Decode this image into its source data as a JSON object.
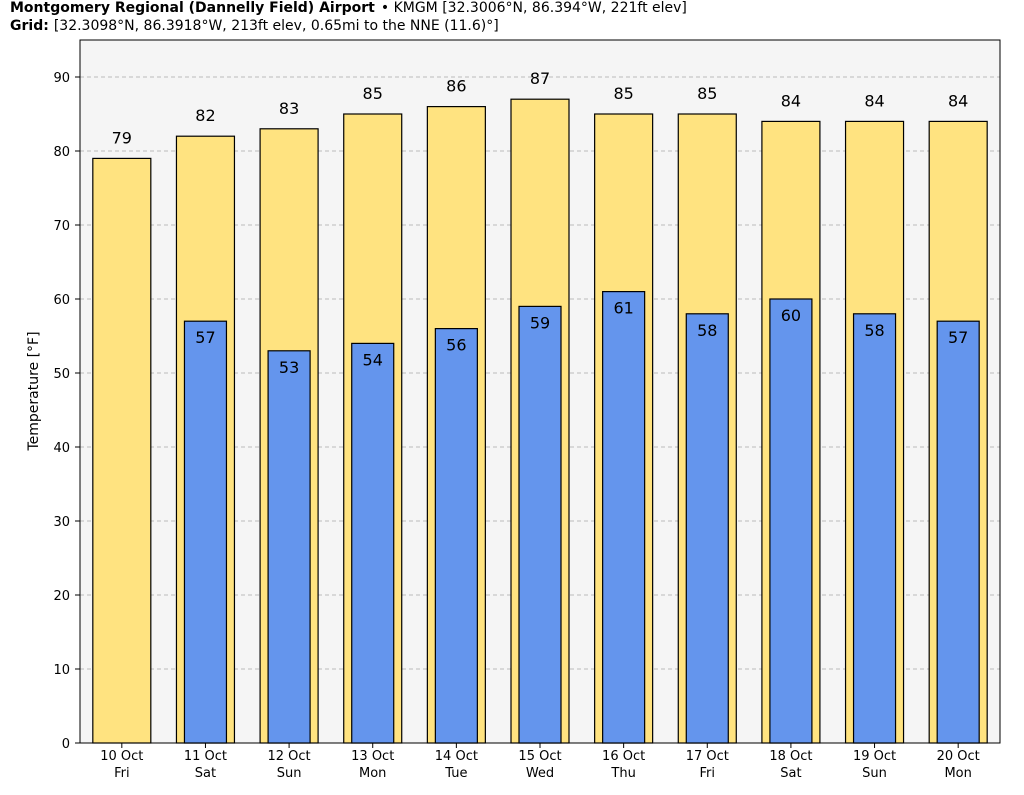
{
  "chart_data": {
    "type": "bar",
    "title": "Montgomery Regional (Dannelly Field) Airport",
    "station": "• KMGM [32.3006°N, 86.394°W, 221ft elev]",
    "grid_label": "Grid:",
    "grid_info": "[32.3098°N, 86.3918°W, 213ft elev, 0.65mi to the NNE (11.6)°]",
    "y_label": "Temperature [°F]",
    "categories": [
      [
        "10 Oct",
        "Fri"
      ],
      [
        "11 Oct",
        "Sat"
      ],
      [
        "12 Oct",
        "Sun"
      ],
      [
        "13 Oct",
        "Mon"
      ],
      [
        "14 Oct",
        "Tue"
      ],
      [
        "15 Oct",
        "Wed"
      ],
      [
        "16 Oct",
        "Thu"
      ],
      [
        "17 Oct",
        "Fri"
      ],
      [
        "18 Oct",
        "Sat"
      ],
      [
        "19 Oct",
        "Sun"
      ],
      [
        "20 Oct",
        "Mon"
      ]
    ],
    "series": [
      {
        "color": "#ffe380",
        "values": [
          79,
          82,
          83,
          85,
          86,
          87,
          85,
          85,
          84,
          84,
          84
        ]
      },
      {
        "color": "#6495ed",
        "values": [
          null,
          57,
          53,
          54,
          56,
          59,
          61,
          58,
          60,
          58,
          57
        ]
      }
    ],
    "ylim": [
      0,
      95
    ],
    "yticks": [
      0,
      10,
      20,
      30,
      40,
      50,
      60,
      70,
      80,
      90
    ],
    "grid": true
  }
}
